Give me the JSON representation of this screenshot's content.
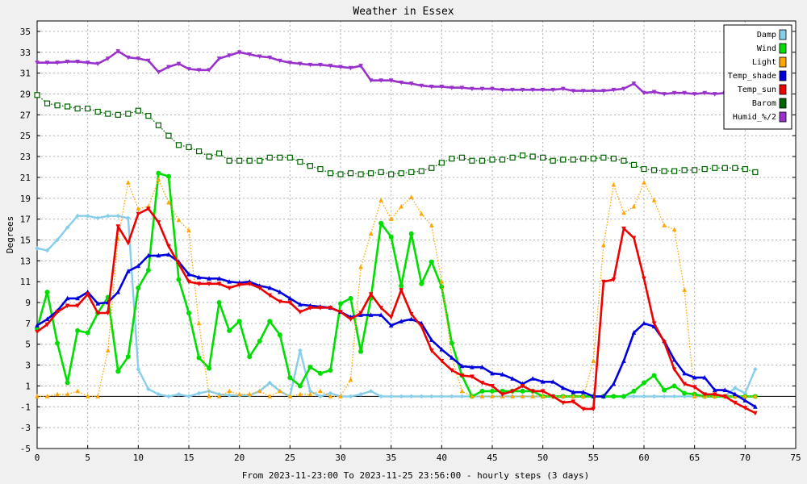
{
  "chart_data": {
    "type": "line",
    "title": "Weather in Essex",
    "xlabel": "From 2023-11-23:00 To 2023-11-25 23:56:00 - hourly steps (3 days)",
    "ylabel": "Degrees",
    "xlim": [
      0,
      75
    ],
    "ylim": [
      -5,
      36
    ],
    "x_ticks": [
      0,
      5,
      10,
      15,
      20,
      25,
      30,
      35,
      40,
      45,
      50,
      55,
      60,
      65,
      70,
      75
    ],
    "y_ticks": [
      -5,
      -3,
      -1,
      1,
      3,
      5,
      7,
      9,
      11,
      13,
      15,
      17,
      19,
      21,
      23,
      25,
      27,
      29,
      31,
      33,
      35
    ],
    "grid": true,
    "legend_position": "top-right",
    "series": [
      {
        "name": "Damp",
        "color": "#87ceeb",
        "style": "solid",
        "marker": "diamond",
        "values": [
          14.2,
          14.0,
          15.0,
          16.2,
          17.3,
          17.3,
          17.1,
          17.3,
          17.3,
          17.1,
          2.6,
          0.7,
          0.2,
          0,
          0.2,
          0,
          0.3,
          0.5,
          0.2,
          0.1,
          0.1,
          0.1,
          0.5,
          1.3,
          0.5,
          0,
          4.4,
          0.5,
          0,
          0.3,
          0,
          0,
          0.2,
          0.5,
          0,
          0,
          0,
          0,
          0,
          0,
          0,
          0,
          0,
          0,
          0,
          0,
          0,
          0,
          0,
          0,
          0,
          0,
          0,
          0,
          0,
          0,
          0,
          0,
          0,
          0,
          0,
          0,
          0,
          0,
          0,
          0,
          0,
          0,
          0,
          0.8,
          0.3,
          2.6
        ]
      },
      {
        "name": "Wind",
        "color": "#00dd00",
        "style": "thick",
        "marker": "circle",
        "values": [
          6.5,
          10.0,
          5.1,
          1.3,
          6.3,
          6.1,
          8.0,
          9.5,
          2.4,
          3.8,
          10.4,
          12.1,
          21.4,
          21.1,
          11.2,
          8.0,
          3.7,
          2.7,
          9.0,
          6.3,
          7.2,
          3.8,
          5.3,
          7.2,
          5.9,
          1.8,
          1.0,
          2.8,
          2.2,
          2.5,
          8.9,
          9.4,
          4.3,
          9.4,
          16.6,
          15.3,
          10.6,
          15.6,
          10.8,
          12.9,
          10.5,
          5.1,
          2.0,
          0,
          0.5,
          0.5,
          0.5,
          0.5,
          0.5,
          0.5,
          0,
          0,
          0,
          0,
          0,
          0,
          0,
          0,
          0,
          0.5,
          1.3,
          2.0,
          0.6,
          1.0,
          0.3,
          0.2,
          0,
          0,
          0,
          0,
          0,
          0
        ]
      },
      {
        "name": "Light",
        "color": "#ffa500",
        "style": "dotted",
        "marker": "triangle-up",
        "values": [
          0,
          0,
          0.2,
          0.2,
          0.5,
          0,
          0,
          4.4,
          15.1,
          20.5,
          18.0,
          18.2,
          20.8,
          18.6,
          16.9,
          15.9,
          7.0,
          0,
          0,
          0.5,
          0.2,
          0.2,
          0.5,
          0,
          0.5,
          0,
          0.2,
          0.2,
          0.5,
          0,
          0,
          1.6,
          12.4,
          15.6,
          18.8,
          17.0,
          18.2,
          19.1,
          17.5,
          16.4,
          11.0,
          3.7,
          0.5,
          0,
          0,
          0,
          0,
          0,
          0,
          0,
          0,
          0,
          0,
          0,
          0,
          3.4,
          14.5,
          20.3,
          17.6,
          18.2,
          20.5,
          18.8,
          16.4,
          16.0,
          10.2,
          0,
          0,
          0,
          0,
          0,
          0,
          0
        ]
      },
      {
        "name": "Temp_shade",
        "color": "#0000dd",
        "style": "thick",
        "marker": "triangle-up",
        "values": [
          6.8,
          7.4,
          8.2,
          9.4,
          9.4,
          10.0,
          8.9,
          9.0,
          10.0,
          12.0,
          12.5,
          13.5,
          13.5,
          13.6,
          12.9,
          11.7,
          11.4,
          11.3,
          11.3,
          11.0,
          10.9,
          11.0,
          10.6,
          10.4,
          10.0,
          9.4,
          8.8,
          8.7,
          8.6,
          8.5,
          8.1,
          7.6,
          7.8,
          7.8,
          7.8,
          6.8,
          7.2,
          7.4,
          7.0,
          5.4,
          4.5,
          3.7,
          2.9,
          2.8,
          2.8,
          2.2,
          2.1,
          1.7,
          1.2,
          1.7,
          1.4,
          1.4,
          0.8,
          0.4,
          0.4,
          0,
          0,
          1.2,
          3.4,
          6.1,
          7.0,
          6.7,
          5.3,
          3.5,
          2.2,
          1.8,
          1.8,
          0.6,
          0.6,
          0.2,
          -0.4,
          -1.0
        ]
      },
      {
        "name": "Temp_sun",
        "color": "#ee0000",
        "style": "thick",
        "marker": "triangle-down",
        "values": [
          6.2,
          6.9,
          8.1,
          8.7,
          8.7,
          9.8,
          8.0,
          8.0,
          16.3,
          14.7,
          17.5,
          18.0,
          16.7,
          14.4,
          12.7,
          11.0,
          10.8,
          10.8,
          10.8,
          10.4,
          10.7,
          10.8,
          10.4,
          9.7,
          9.1,
          9.0,
          8.1,
          8.5,
          8.5,
          8.5,
          8.1,
          7.4,
          8.0,
          9.8,
          8.5,
          7.6,
          10.2,
          7.9,
          6.7,
          4.4,
          3.4,
          2.5,
          2.0,
          1.9,
          1.3,
          1.0,
          0.2,
          0.5,
          1.0,
          0.5,
          0.5,
          0,
          -0.6,
          -0.5,
          -1.2,
          -1.2,
          11.0,
          11.2,
          16.1,
          15.2,
          11.3,
          7.0,
          5.2,
          2.6,
          1.2,
          0.9,
          0.2,
          0.2,
          0,
          -0.6,
          -1.1,
          -1.6
        ]
      },
      {
        "name": "Barom",
        "color": "#006400",
        "style": "dotted",
        "marker": "square",
        "values": [
          28.9,
          28.1,
          27.9,
          27.8,
          27.6,
          27.6,
          27.3,
          27.1,
          27.0,
          27.1,
          27.4,
          26.9,
          26.0,
          25.0,
          24.1,
          23.9,
          23.5,
          23.0,
          23.3,
          22.6,
          22.6,
          22.6,
          22.6,
          22.9,
          22.9,
          22.9,
          22.5,
          22.1,
          21.8,
          21.4,
          21.3,
          21.4,
          21.3,
          21.4,
          21.5,
          21.3,
          21.4,
          21.5,
          21.6,
          21.9,
          22.4,
          22.8,
          22.9,
          22.6,
          22.6,
          22.7,
          22.7,
          22.9,
          23.1,
          23.0,
          22.9,
          22.6,
          22.7,
          22.7,
          22.8,
          22.8,
          22.9,
          22.8,
          22.6,
          22.2,
          21.8,
          21.7,
          21.6,
          21.6,
          21.7,
          21.7,
          21.8,
          21.9,
          21.9,
          21.9,
          21.8,
          21.5
        ]
      },
      {
        "name": "Humid_%/2",
        "color": "#9932cc",
        "style": "thick",
        "marker": "triangle-down",
        "values": [
          32.0,
          32.0,
          32.0,
          32.1,
          32.1,
          32.0,
          31.9,
          32.4,
          33.1,
          32.5,
          32.4,
          32.2,
          31.1,
          31.6,
          31.9,
          31.4,
          31.3,
          31.3,
          32.4,
          32.7,
          33.0,
          32.8,
          32.6,
          32.5,
          32.2,
          32.0,
          31.9,
          31.8,
          31.8,
          31.7,
          31.6,
          31.5,
          31.7,
          30.3,
          30.3,
          30.3,
          30.1,
          30.0,
          29.8,
          29.7,
          29.7,
          29.6,
          29.6,
          29.5,
          29.5,
          29.5,
          29.4,
          29.4,
          29.4,
          29.4,
          29.4,
          29.4,
          29.5,
          29.3,
          29.3,
          29.3,
          29.3,
          29.4,
          29.5,
          30.0,
          29.1,
          29.2,
          29.0,
          29.1,
          29.1,
          29.0,
          29.1,
          29.0,
          29.1,
          29.8,
          30.0,
          30.0
        ]
      }
    ]
  }
}
